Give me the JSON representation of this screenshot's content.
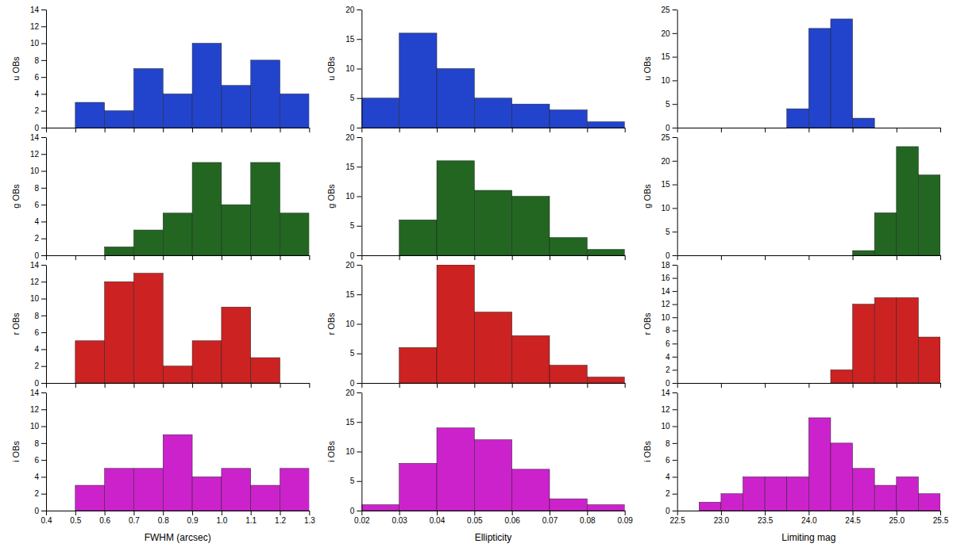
{
  "chart_data": [
    {
      "type": "histogram",
      "bins": [
        0.4,
        0.5,
        0.6,
        0.7,
        0.8,
        0.9,
        1.0,
        1.1,
        1.2,
        1.3
      ],
      "values": [
        0,
        3,
        2,
        7,
        4,
        10,
        5,
        8,
        4
      ],
      "color": "#2244cc",
      "xlim": [
        0.4,
        1.3
      ],
      "xticks": [
        0.4,
        0.5,
        0.6,
        0.7,
        0.8,
        0.9,
        1.0,
        1.1,
        1.2,
        1.3
      ],
      "ylim": [
        0,
        14
      ],
      "yticks": [
        0,
        2,
        4,
        6,
        8,
        10,
        12,
        14
      ],
      "ylabel": "u OBs",
      "tick_labels": "y"
    },
    {
      "type": "histogram",
      "bins": [
        0.4,
        0.5,
        0.6,
        0.7,
        0.8,
        0.9,
        1.0,
        1.1,
        1.2,
        1.3
      ],
      "values": [
        0,
        0,
        1,
        3,
        5,
        11,
        6,
        11,
        5
      ],
      "color": "#226622",
      "xlim": [
        0.4,
        1.3
      ],
      "xticks": [
        0.4,
        0.5,
        0.6,
        0.7,
        0.8,
        0.9,
        1.0,
        1.1,
        1.2,
        1.3
      ],
      "ylim": [
        0,
        14
      ],
      "yticks": [
        0,
        2,
        4,
        6,
        8,
        10,
        12,
        14
      ],
      "ylabel": "g OBs",
      "tick_labels": "y"
    },
    {
      "type": "histogram",
      "bins": [
        0.4,
        0.5,
        0.6,
        0.7,
        0.8,
        0.9,
        1.0,
        1.1,
        1.2,
        1.3
      ],
      "values": [
        0,
        5,
        12,
        13,
        2,
        5,
        9,
        3,
        0
      ],
      "color": "#cc2222",
      "xlim": [
        0.4,
        1.3
      ],
      "xticks": [
        0.4,
        0.5,
        0.6,
        0.7,
        0.8,
        0.9,
        1.0,
        1.1,
        1.2,
        1.3
      ],
      "ylim": [
        0,
        14
      ],
      "yticks": [
        0,
        2,
        4,
        6,
        8,
        10,
        12,
        14
      ],
      "ylabel": "r OBs",
      "tick_labels": "y"
    },
    {
      "type": "histogram",
      "bins": [
        0.4,
        0.5,
        0.6,
        0.7,
        0.8,
        0.9,
        1.0,
        1.1,
        1.2,
        1.3
      ],
      "values": [
        0,
        3,
        5,
        5,
        9,
        4,
        5,
        3,
        5
      ],
      "color": "#cc22cc",
      "xlim": [
        0.4,
        1.3
      ],
      "xticks": [
        0.4,
        0.5,
        0.6,
        0.7,
        0.8,
        0.9,
        {
          "value": 1.0,
          "label": "1.0"
        },
        1.1,
        1.2,
        1.3
      ],
      "ylim": [
        0,
        14
      ],
      "yticks": [
        0,
        2,
        4,
        6,
        8,
        10,
        12,
        14
      ],
      "ylabel": "i OBs",
      "xlabel": "FWHM (arcsec)"
    },
    {
      "type": "histogram",
      "bins": [
        0.02,
        0.03,
        0.04,
        0.05,
        0.06,
        0.07,
        0.08,
        0.09
      ],
      "values": [
        5,
        16,
        10,
        5,
        4,
        3,
        1
      ],
      "color": "#2244cc",
      "xlim": [
        0.02,
        0.09
      ],
      "xticks": [
        0.02,
        0.03,
        0.04,
        0.05,
        0.06,
        0.07,
        0.08,
        0.09
      ],
      "ylim": [
        0,
        20
      ],
      "yticks": [
        0,
        5,
        10,
        15,
        20
      ],
      "ylabel": "u OBs",
      "tick_labels": "y"
    },
    {
      "type": "histogram",
      "bins": [
        0.02,
        0.03,
        0.04,
        0.05,
        0.06,
        0.07,
        0.08,
        0.09
      ],
      "values": [
        0,
        6,
        16,
        11,
        10,
        3,
        1
      ],
      "color": "#226622",
      "xlim": [
        0.02,
        0.09
      ],
      "xticks": [
        0.02,
        0.03,
        0.04,
        0.05,
        0.06,
        0.07,
        0.08,
        0.09
      ],
      "ylim": [
        0,
        20
      ],
      "yticks": [
        0,
        5,
        10,
        15,
        20
      ],
      "ylabel": "g OBs",
      "tick_labels": "y"
    },
    {
      "type": "histogram",
      "bins": [
        0.02,
        0.03,
        0.04,
        0.05,
        0.06,
        0.07,
        0.08,
        0.09
      ],
      "values": [
        0,
        6,
        20,
        12,
        8,
        3,
        1
      ],
      "color": "#cc2222",
      "xlim": [
        0.02,
        0.09
      ],
      "xticks": [
        0.02,
        0.03,
        0.04,
        0.05,
        0.06,
        0.07,
        0.08,
        0.09
      ],
      "ylim": [
        0,
        20
      ],
      "yticks": [
        0,
        5,
        10,
        15,
        20
      ],
      "ylabel": "r OBs",
      "tick_labels": "y"
    },
    {
      "type": "histogram",
      "bins": [
        0.02,
        0.03,
        0.04,
        0.05,
        0.06,
        0.07,
        0.08,
        0.09
      ],
      "values": [
        1,
        8,
        14,
        12,
        7,
        2,
        1
      ],
      "color": "#cc22cc",
      "xlim": [
        0.02,
        0.09
      ],
      "xticks": [
        0.02,
        0.03,
        0.04,
        0.05,
        0.06,
        0.07,
        0.08,
        0.09
      ],
      "ylim": [
        0,
        20
      ],
      "yticks": [
        0,
        5,
        10,
        15,
        20
      ],
      "ylabel": "i OBs",
      "xlabel": "Ellipticity"
    },
    {
      "type": "histogram",
      "bins": [
        22.5,
        22.75,
        23.0,
        23.25,
        23.5,
        23.75,
        24.0,
        24.25,
        24.5,
        24.75,
        25.0,
        25.25,
        25.5
      ],
      "values": [
        0,
        0,
        0,
        0,
        0,
        4,
        21,
        23,
        2,
        0,
        0,
        0
      ],
      "color": "#2244cc",
      "xlim": [
        22.5,
        25.5
      ],
      "xticks": [
        22.5,
        23.0,
        23.5,
        24.0,
        24.5,
        25.0,
        25.5
      ],
      "ylim": [
        0,
        25
      ],
      "yticks": [
        0,
        5,
        10,
        15,
        20,
        25
      ],
      "ylabel": "u OBs",
      "tick_labels": "y"
    },
    {
      "type": "histogram",
      "bins": [
        22.5,
        22.75,
        23.0,
        23.25,
        23.5,
        23.75,
        24.0,
        24.25,
        24.5,
        24.75,
        25.0,
        25.25,
        25.5
      ],
      "values": [
        0,
        0,
        0,
        0,
        0,
        0,
        0,
        0,
        1,
        9,
        23,
        17
      ],
      "color": "#226622",
      "xlim": [
        22.5,
        25.5
      ],
      "xticks": [
        22.5,
        23.0,
        23.5,
        24.0,
        24.5,
        25.0,
        25.5
      ],
      "ylim": [
        0,
        25
      ],
      "yticks": [
        0,
        5,
        10,
        15,
        20,
        25
      ],
      "ylabel": "g OBs",
      "tick_labels": "y"
    },
    {
      "type": "histogram",
      "bins": [
        22.5,
        22.75,
        23.0,
        23.25,
        23.5,
        23.75,
        24.0,
        24.25,
        24.5,
        24.75,
        25.0,
        25.25,
        25.5
      ],
      "values": [
        0,
        0,
        0,
        0,
        0,
        0,
        0,
        2,
        12,
        13,
        13,
        7
      ],
      "color": "#cc2222",
      "xlim": [
        22.5,
        25.5
      ],
      "xticks": [
        22.5,
        23.0,
        23.5,
        24.0,
        24.5,
        25.0,
        25.5
      ],
      "ylim": [
        0,
        18
      ],
      "yticks": [
        0,
        2,
        4,
        6,
        8,
        10,
        12,
        14,
        16,
        18
      ],
      "ylabel": "r OBs",
      "tick_labels": "y"
    },
    {
      "type": "histogram",
      "bins": [
        22.5,
        22.75,
        23.0,
        23.25,
        23.5,
        23.75,
        24.0,
        24.25,
        24.5,
        24.75,
        25.0,
        25.25,
        25.5
      ],
      "values": [
        0,
        1,
        2,
        4,
        4,
        4,
        11,
        8,
        5,
        3,
        4,
        2
      ],
      "color": "#cc22cc",
      "xlim": [
        22.5,
        25.5
      ],
      "xticks": [
        22.5,
        {
          "value": 23.0,
          "label": "23.0"
        },
        23.5,
        {
          "value": 24.0,
          "label": "24.0"
        },
        24.5,
        {
          "value": 25.0,
          "label": "25.0"
        },
        25.5
      ],
      "ylim": [
        0,
        14
      ],
      "yticks": [
        0,
        2,
        4,
        6,
        8,
        10,
        12,
        14
      ],
      "ylabel": "i OBs",
      "xlabel": "Limiting mag"
    }
  ]
}
